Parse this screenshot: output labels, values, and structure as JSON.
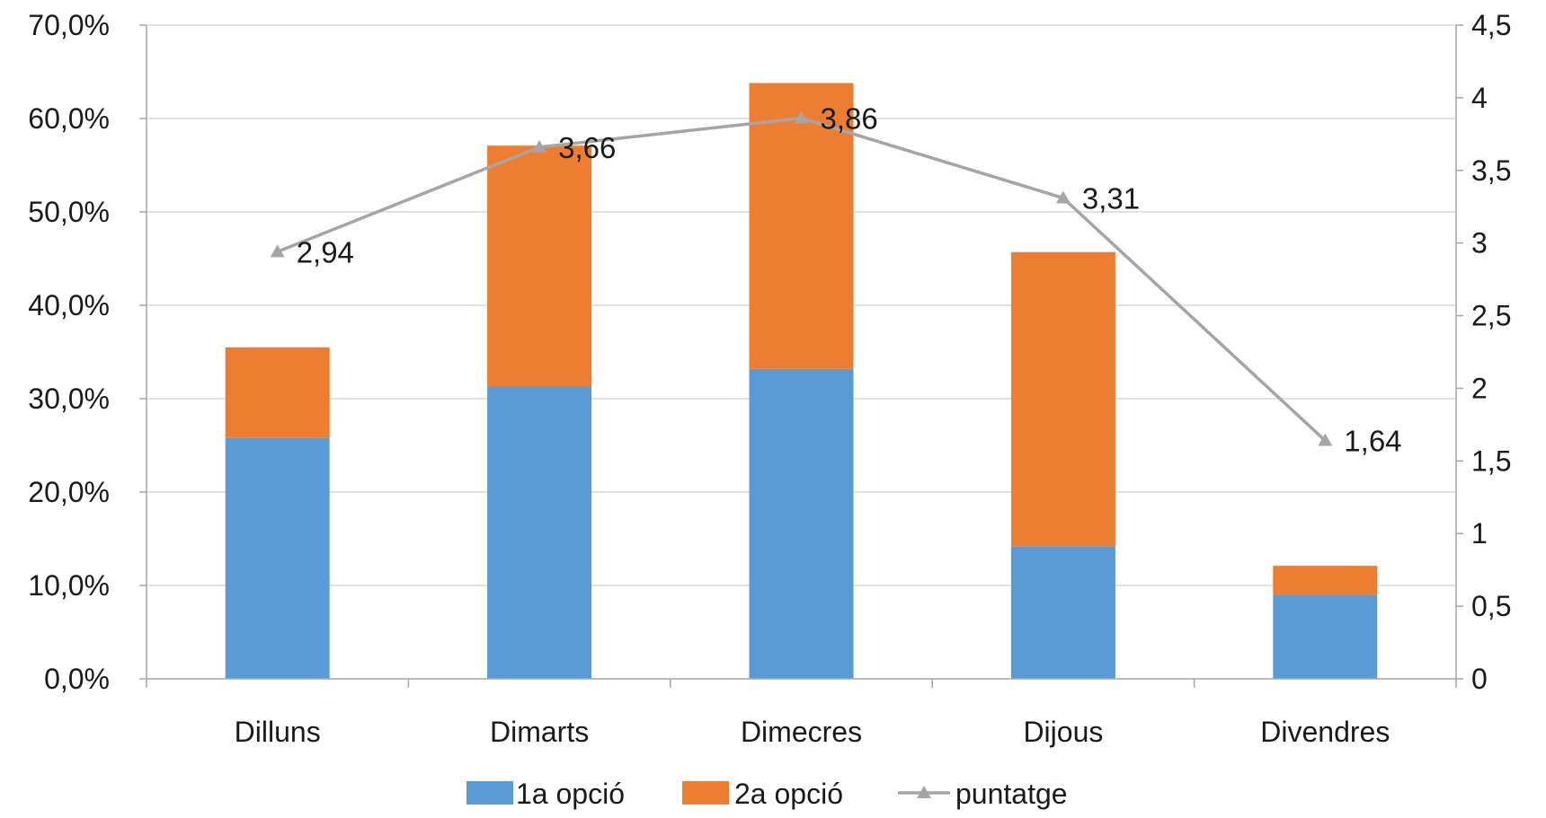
{
  "chart_data": {
    "type": "bar",
    "stacked": true,
    "categories": [
      "Dilluns",
      "Dimarts",
      "Dimecres",
      "Dijous",
      "Divendres"
    ],
    "series": [
      {
        "name": "1a opció",
        "type": "bar",
        "axis": "left",
        "color": "#5b9bd5",
        "values": [
          25.8,
          31.3,
          33.2,
          14.2,
          9.0
        ]
      },
      {
        "name": "2a opció",
        "type": "bar",
        "axis": "left",
        "color": "#ed7d31",
        "values": [
          9.7,
          25.8,
          30.6,
          31.5,
          3.1
        ]
      },
      {
        "name": "puntatge",
        "type": "line",
        "axis": "right",
        "color": "#a5a5a5",
        "marker": "triangle",
        "values": [
          2.94,
          3.66,
          3.86,
          3.31,
          1.64
        ],
        "labels": [
          "2,94",
          "3,66",
          "3,86",
          "3,31",
          "1,64"
        ]
      }
    ],
    "y_left": {
      "ylim": [
        0,
        70
      ],
      "ticks": [
        "0,0%",
        "10,0%",
        "20,0%",
        "30,0%",
        "40,0%",
        "50,0%",
        "60,0%",
        "70,0%"
      ]
    },
    "y_right": {
      "ylim": [
        0,
        4.5
      ],
      "ticks": [
        "0",
        "0,5",
        "1",
        "1,5",
        "2",
        "2,5",
        "3",
        "3,5",
        "4",
        "4,5"
      ]
    },
    "grid": true,
    "legend": "bottom",
    "title": "",
    "xlabel": "",
    "ylabel": ""
  }
}
